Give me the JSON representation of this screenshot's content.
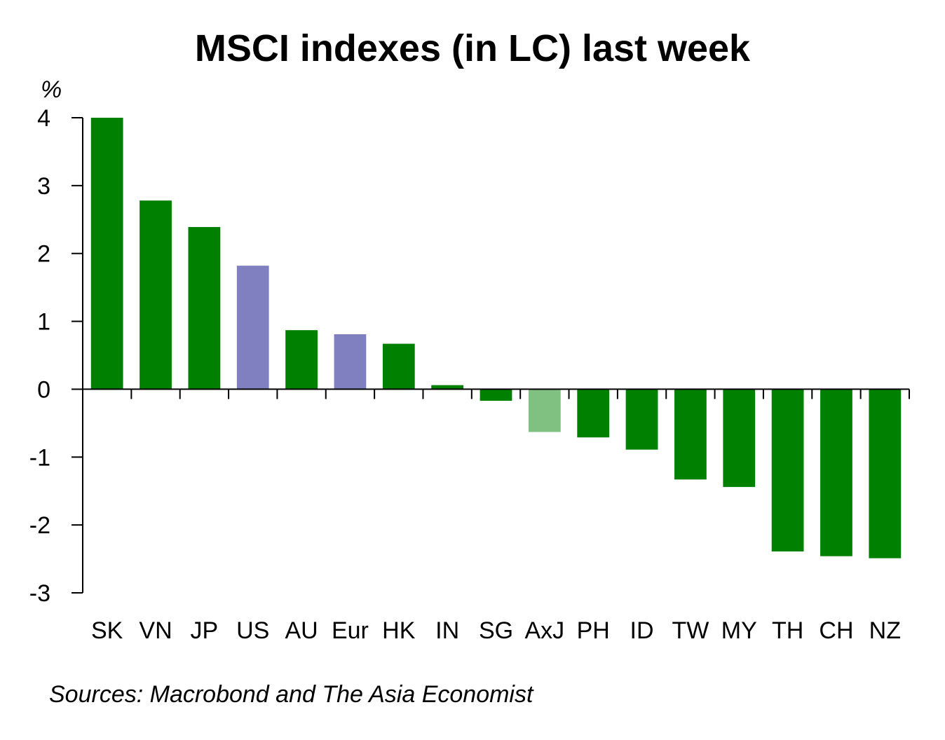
{
  "title": "MSCI indexes (in LC) last week",
  "source": "Sources: Macrobond and The Asia Economist",
  "colors": {
    "asia": "#008000",
    "developed_other": "#8080C0",
    "asia_ex_japan": "#80C080",
    "axis": "#000000"
  },
  "chart_data": {
    "type": "bar",
    "title": "MSCI indexes (in LC) last week",
    "ylabel": "%",
    "xlabel": "",
    "ylim": [
      -3,
      4
    ],
    "yticks": [
      4,
      3,
      2,
      1,
      0,
      -1,
      -2,
      -3
    ],
    "grid": false,
    "categories": [
      "SK",
      "VN",
      "JP",
      "US",
      "AU",
      "Eur",
      "HK",
      "IN",
      "SG",
      "AxJ",
      "PH",
      "ID",
      "TW",
      "MY",
      "TH",
      "CH",
      "NZ"
    ],
    "values": [
      4.0,
      2.78,
      2.39,
      1.82,
      0.87,
      0.81,
      0.67,
      0.06,
      -0.17,
      -0.63,
      -0.71,
      -0.89,
      -1.33,
      -1.44,
      -2.39,
      -2.46,
      -2.49
    ],
    "bar_colors": [
      "asia",
      "asia",
      "asia",
      "developed_other",
      "asia",
      "developed_other",
      "asia",
      "asia",
      "asia",
      "asia_ex_japan",
      "asia",
      "asia",
      "asia",
      "asia",
      "asia",
      "asia",
      "asia"
    ]
  }
}
